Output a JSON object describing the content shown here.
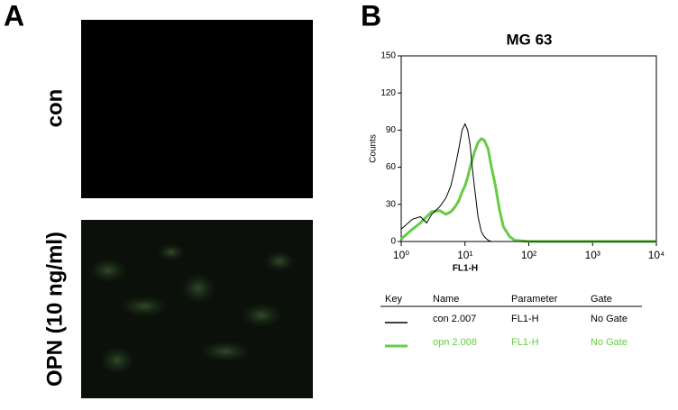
{
  "panel_a": {
    "label": "A",
    "rows": [
      "con",
      "OPN (10 ng/ml)"
    ]
  },
  "chart_data": {
    "type": "line",
    "panel_label": "B",
    "title": "MG 63",
    "ylabel": "Counts",
    "xlabel": "FL1-H",
    "log_x": true,
    "x": [
      1,
      1.5,
      2,
      2.5,
      3,
      4,
      5,
      6,
      7,
      8,
      9,
      10,
      11,
      12,
      13,
      14,
      16,
      18,
      20,
      23,
      26,
      30,
      35,
      40,
      50,
      60,
      100,
      1000,
      10000
    ],
    "series": [
      {
        "name": "con 2.007",
        "color": "#000000",
        "parameter": "FL1-H",
        "gate": "No Gate",
        "values": [
          10,
          18,
          20,
          15,
          22,
          28,
          35,
          45,
          60,
          75,
          90,
          95,
          90,
          78,
          60,
          45,
          20,
          8,
          4,
          1,
          0,
          0,
          0,
          0,
          0,
          0,
          0,
          0,
          0
        ]
      },
      {
        "name": "opn 2.008",
        "color": "#66cc44",
        "parameter": "FL1-H",
        "gate": "No Gate",
        "values": [
          2,
          10,
          15,
          20,
          24,
          25,
          22,
          24,
          28,
          33,
          40,
          45,
          52,
          60,
          66,
          72,
          80,
          83,
          82,
          75,
          60,
          45,
          25,
          12,
          4,
          1,
          0,
          0,
          0
        ]
      }
    ],
    "xlim": [
      1,
      10000
    ],
    "xticks": [
      {
        "value": 1,
        "label": "10⁰"
      },
      {
        "value": 10,
        "label": "10¹"
      },
      {
        "value": 100,
        "label": "10²"
      },
      {
        "value": 1000,
        "label": "10³"
      },
      {
        "value": 10000,
        "label": "10⁴"
      }
    ],
    "ylim": [
      0,
      150
    ],
    "yticks": [
      0,
      30,
      60,
      90,
      120,
      150
    ],
    "key_headers": [
      "Key",
      "Name",
      "Parameter",
      "Gate"
    ]
  }
}
